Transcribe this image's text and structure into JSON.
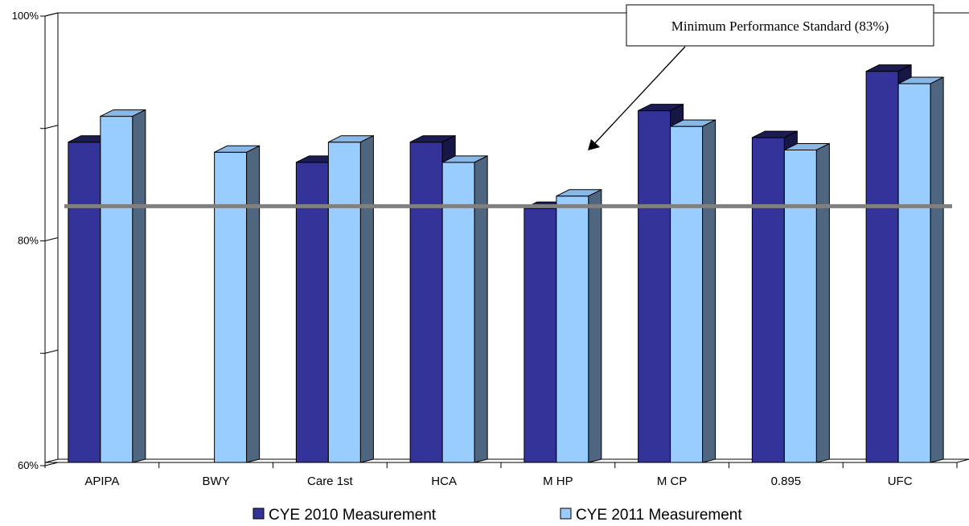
{
  "chart_data": {
    "type": "bar",
    "categories": [
      "APIPA",
      "BWY",
      "Care 1st",
      "HCA",
      "M HP",
      "M CP",
      "0.895",
      "UFC"
    ],
    "series": [
      {
        "name": "CYE 2010 Measurement",
        "values": [
          88.5,
          null,
          86.7,
          88.5,
          82.6,
          91.3,
          88.9,
          94.8
        ],
        "color": "#333399"
      },
      {
        "name": "CYE 2011 Measurement",
        "values": [
          90.8,
          87.6,
          88.5,
          86.7,
          83.7,
          89.9,
          87.8,
          93.7
        ],
        "color": "#99CCFF"
      }
    ],
    "ylim": [
      60,
      100
    ],
    "yticks": [
      "60%",
      "80%",
      "100%"
    ],
    "reference_line": {
      "value": 82.8,
      "color": "#808080"
    },
    "annotation": "Minimum Performance Standard (83%)",
    "legend_position": "bottom",
    "grid": false
  }
}
